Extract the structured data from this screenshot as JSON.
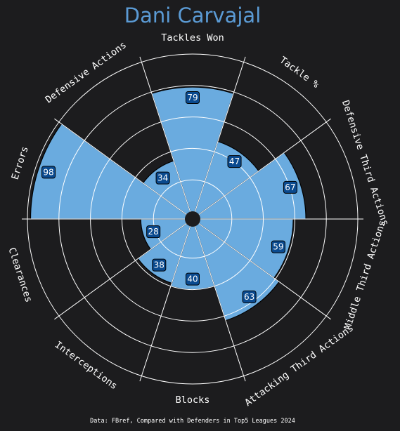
{
  "chart_data": {
    "type": "pizza",
    "title": "Dani Carvajal",
    "footer": "Data: FBref, Compared with Defenders in Top5 Leagues 2024",
    "max_value": 100,
    "grid_rings": [
      20,
      40,
      60,
      80,
      100
    ],
    "colors": {
      "background": "#1c1c1e",
      "slice": "#6aabdf",
      "slice_edge": "#000000",
      "grid": "#ffffff",
      "value_box": "#0a4a8f",
      "title": "#5b9bd5"
    },
    "params": [
      "Tackles Won",
      "Tackle %",
      "Defensive Third Actions",
      "Middle Third Actions",
      "Attacking Third Actions",
      "Blocks",
      "Interceptions",
      "Clearances",
      "Errors",
      "Defensive Actions"
    ],
    "values": [
      79,
      47,
      67,
      59,
      63,
      40,
      38,
      28,
      98,
      34
    ]
  }
}
